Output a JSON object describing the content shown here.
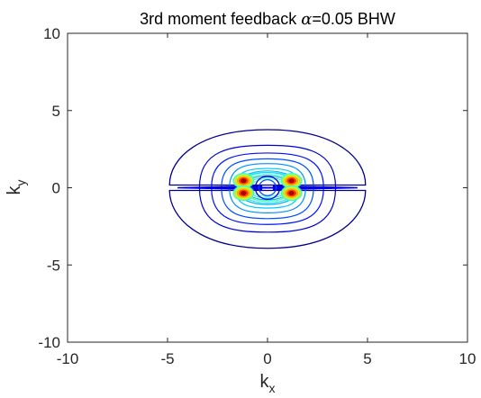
{
  "chart_data": {
    "type": "contour",
    "title": "3rd moment feedback α=0.05  BHW",
    "title_parts": {
      "prefix": "3rd moment feedback ",
      "alpha_symbol": "α",
      "suffix": "=0.05  BHW"
    },
    "xlabel": {
      "base": "k",
      "subscript": "x"
    },
    "ylabel": {
      "base": "k",
      "subscript": "y"
    },
    "xlim": [
      -10,
      10
    ],
    "ylim": [
      -10,
      10
    ],
    "xticks": [
      -10,
      -5,
      0,
      5,
      10
    ],
    "yticks": [
      -10,
      -5,
      0,
      5,
      10
    ],
    "xtick_labels": [
      "-10",
      "-5",
      "0",
      "5",
      "10"
    ],
    "ytick_labels": [
      "-10",
      "-5",
      "0",
      "5",
      "10"
    ],
    "grid": false,
    "colormap": "jet",
    "contour_levels": [
      {
        "rx": 4.9,
        "ry_top": 3.0,
        "ry_bottom": 3.2,
        "color": "#00008f"
      },
      {
        "rx": 3.4,
        "ry_top": 2.2,
        "ry_bottom": 2.3,
        "color": "#0000cf"
      },
      {
        "rx": 2.8,
        "ry_top": 1.8,
        "ry_bottom": 1.9,
        "color": "#0010ff"
      },
      {
        "rx": 2.3,
        "ry_top": 1.5,
        "ry_bottom": 1.6,
        "color": "#0050ff"
      },
      {
        "rx": 1.9,
        "ry_top": 1.25,
        "ry_bottom": 1.3,
        "color": "#0090ff"
      },
      {
        "rx": 1.6,
        "ry_top": 1.0,
        "ry_bottom": 1.05,
        "color": "#00c8ff"
      },
      {
        "rx": 1.3,
        "ry_top": 0.8,
        "ry_bottom": 0.85,
        "color": "#30ffcf"
      },
      {
        "rx": 1.05,
        "ry_top": 0.62,
        "ry_bottom": 0.65,
        "color": "#70ff8f"
      }
    ],
    "outer_lobes": [
      {
        "side": "top",
        "cx": 0,
        "cy": 1.6,
        "rx": 4.9,
        "ry": 1.6
      },
      {
        "side": "bottom",
        "cx": 0,
        "cy": -1.6,
        "rx": 4.9,
        "ry": 1.6
      }
    ],
    "hot_spots": [
      {
        "x": -1.2,
        "y": 0.45
      },
      {
        "x": 1.2,
        "y": 0.45
      },
      {
        "x": -1.2,
        "y": -0.35
      },
      {
        "x": 1.2,
        "y": -0.35
      }
    ],
    "center_ring": {
      "x": 0,
      "y": 0,
      "rx": 0.25,
      "ry": 0.28
    },
    "ridge": {
      "y": 0,
      "x_extent": 4.5
    }
  }
}
